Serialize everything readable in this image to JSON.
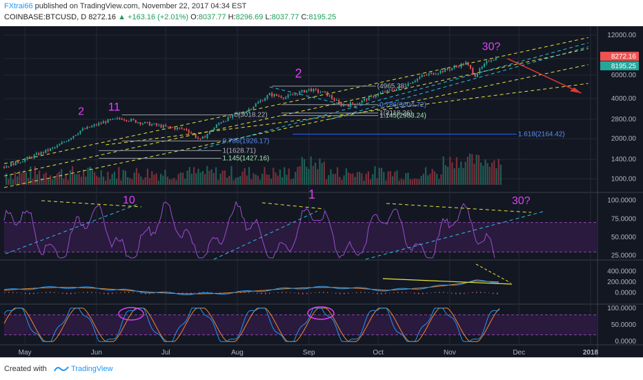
{
  "header": {
    "author": "FXtrai66",
    "published": "published on TradingView.com, November 22, 2017 04:34 EST",
    "symbol": "COINBASE:BTCUSD, D",
    "last": "8272.16",
    "change": "+163.16 (+2.01%)",
    "o_label": "O:",
    "o_value": "8037.77",
    "h_label": "H:",
    "h_value": "8296.69",
    "l_label": "L:",
    "l_value": "8037.77",
    "c_label": "C:",
    "c_value": "8195.25"
  },
  "footer": {
    "created": "Created with",
    "brand": "TradingView"
  },
  "colors": {
    "bg": "#131722",
    "up": "#26a69a",
    "down": "#ef5350",
    "annot": "#e040fb",
    "yellow": "#e6e63c",
    "cyan": "#2ec4e6"
  },
  "chart_data": [
    {
      "type": "line",
      "panel": "price",
      "scale": "log",
      "ylim": [
        800,
        14000
      ],
      "yticks": [
        "12000.00",
        "8000.00",
        "6000.00",
        "4000.00",
        "2800.00",
        "2000.00",
        "1400.00",
        "1000.00"
      ],
      "ytick_values": [
        12000,
        8000,
        6000,
        4000,
        2800,
        2000,
        1400,
        1000
      ],
      "xticks": [
        "May",
        "Jun",
        "Jul",
        "Aug",
        "Sep",
        "Oct",
        "Nov",
        "Dec",
        "2018"
      ],
      "x_dates": [
        "2017-04-22",
        "2017-05-01",
        "2017-05-15",
        "2017-05-25",
        "2017-06-05",
        "2017-06-12",
        "2017-06-20",
        "2017-07-01",
        "2017-07-10",
        "2017-07-16",
        "2017-07-25",
        "2017-08-05",
        "2017-08-15",
        "2017-08-22",
        "2017-09-01",
        "2017-09-08",
        "2017-09-15",
        "2017-09-22",
        "2017-10-01",
        "2017-10-10",
        "2017-10-20",
        "2017-11-01",
        "2017-11-08",
        "2017-11-12",
        "2017-11-18",
        "2017-11-22"
      ],
      "close": [
        1230,
        1400,
        1750,
        2300,
        2700,
        2850,
        2650,
        2450,
        2350,
        1950,
        2700,
        3250,
        4300,
        4100,
        4700,
        4400,
        3600,
        3700,
        4350,
        4800,
        5900,
        6700,
        7400,
        6000,
        7800,
        8195
      ],
      "price_labels": [
        {
          "text": "8272.16",
          "value": 8272.16,
          "color": "#ef5350"
        },
        {
          "text": "8195.25",
          "value": 8195.25,
          "color": "#26a69a"
        }
      ],
      "fib_levels": [
        {
          "text": "0(3018.22)",
          "value": 3018.22,
          "start": "2017-06-12",
          "end": "2017-07-30"
        },
        {
          "text": "0.786(1926.17)",
          "value": 1926.17,
          "start": "2017-06-12",
          "end": "2017-07-25"
        },
        {
          "text": "1(1628.71)",
          "value": 1628.71,
          "start": "2017-06-02",
          "end": "2017-07-25"
        },
        {
          "text": "1.145(1427.16)",
          "value": 1427.16,
          "start": "2017-06-02",
          "end": "2017-07-25"
        },
        {
          "text": "(4965.38)",
          "value": 4965.38,
          "start": "2017-08-16",
          "end": "2017-09-30"
        },
        {
          "text": "0.786(3604.72)",
          "value": 3604.72,
          "start": "2017-08-20",
          "end": "2017-10-01"
        },
        {
          "text": "1(3118.26)",
          "value": 3118.26,
          "start": "2017-08-20",
          "end": "2017-10-01"
        },
        {
          "text": "1.145(2983.24)",
          "value": 2983.24,
          "start": "2017-08-20",
          "end": "2017-10-01"
        },
        {
          "text": "1.618(2164.42)",
          "value": 2164.42,
          "start": "2017-08-25",
          "end": "2017-11-30"
        }
      ],
      "annotations": [
        "2",
        "11",
        "2",
        "30?"
      ]
    },
    {
      "type": "bar",
      "panel": "volume",
      "note": "volume bars overlaid at bottom of price panel"
    },
    {
      "type": "line",
      "panel": "rsi",
      "ylim": [
        20,
        110
      ],
      "yticks": [
        "100.0000",
        "75.0000",
        "50.0000",
        "25.0000"
      ],
      "ytick_values": [
        100,
        75,
        50,
        25
      ],
      "band": [
        30,
        70
      ],
      "annotations": [
        "10",
        "1",
        "30?"
      ]
    },
    {
      "type": "line",
      "panel": "macd",
      "ylim": [
        -200,
        600
      ],
      "yticks": [
        "400.0000",
        "200.0000",
        "0.0000"
      ],
      "ytick_values": [
        400,
        200,
        0
      ]
    },
    {
      "type": "line",
      "panel": "stoch_rsi",
      "ylim": [
        -10,
        110
      ],
      "yticks": [
        "100.0000",
        "50.0000",
        "0.0000"
      ],
      "ytick_values": [
        100,
        50,
        0
      ],
      "band": [
        20,
        80
      ]
    }
  ]
}
